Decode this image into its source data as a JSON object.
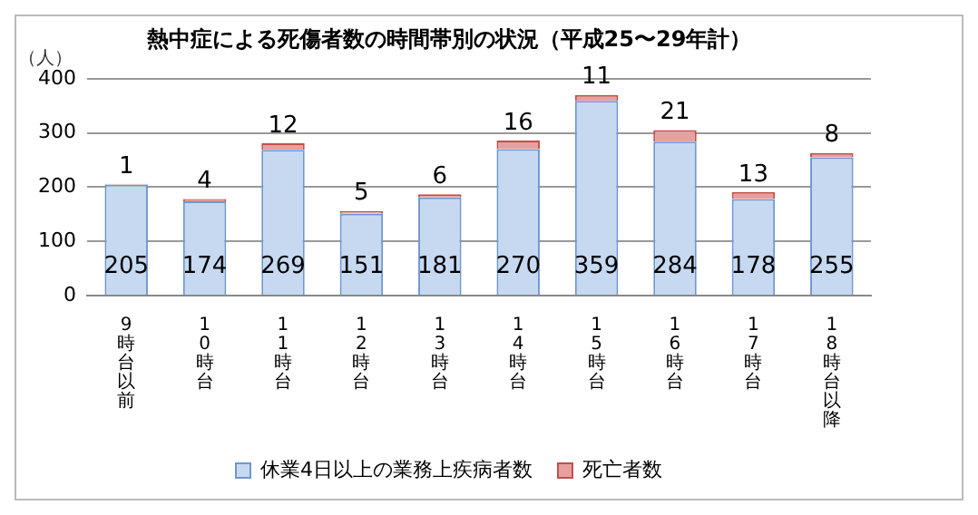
{
  "chart_data": {
    "type": "bar",
    "title": "熱中症による死傷者数の時間帯別の状況（平成25〜29年計）",
    "ylabel": "（人）",
    "categories": [
      "9時台以前",
      "10時台",
      "11時台",
      "12時台",
      "13時台",
      "14時台",
      "15時台",
      "16時台",
      "17時台",
      "18時台以降"
    ],
    "stacked": true,
    "ylim": [
      0,
      400
    ],
    "yticks": [
      0,
      100,
      200,
      300,
      400
    ],
    "grid": "y",
    "legend": "bottom",
    "data_labels": true,
    "series": [
      {
        "name": "休業4日以上の業務上疾病者数",
        "color": "#c6d9f1",
        "values": [
          205,
          174,
          269,
          151,
          181,
          270,
          359,
          284,
          178,
          255
        ]
      },
      {
        "name": "死亡者数",
        "color": "#e6a0a0",
        "values": [
          1,
          4,
          12,
          5,
          6,
          16,
          11,
          21,
          13,
          8
        ]
      }
    ]
  }
}
